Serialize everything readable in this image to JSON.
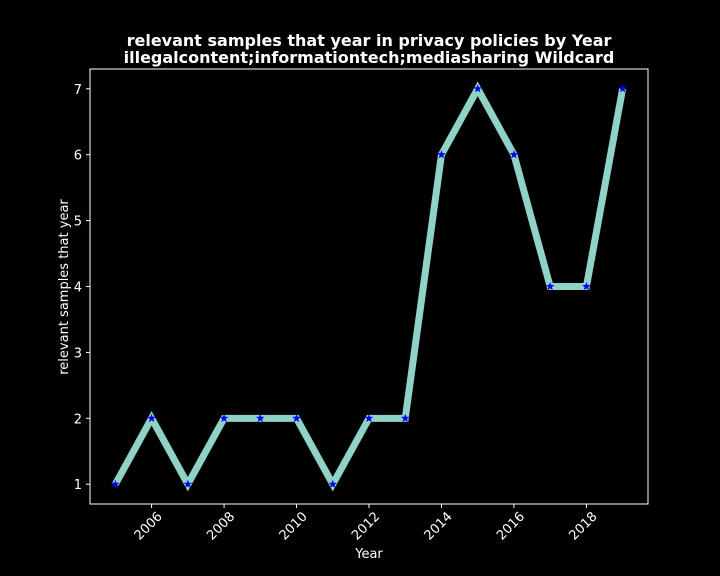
{
  "chart_data": {
    "type": "line",
    "title_line1": "relevant samples that year in privacy policies by Year",
    "title_line2": "illegalcontent;informationtech;mediasharing Wildcard",
    "xlabel": "Year",
    "ylabel": "relevant samples that year",
    "x": [
      2005,
      2006,
      2007,
      2008,
      2009,
      2010,
      2011,
      2012,
      2013,
      2014,
      2015,
      2016,
      2017,
      2018,
      2019
    ],
    "values": [
      1,
      2,
      1,
      2,
      2,
      2,
      1,
      2,
      2,
      6,
      7,
      6,
      4,
      4,
      7
    ],
    "xlim": [
      2004.3,
      2019.7
    ],
    "ylim": [
      0.7,
      7.3
    ],
    "xticks": [
      2006,
      2008,
      2010,
      2012,
      2014,
      2016,
      2018
    ],
    "yticks": [
      1,
      2,
      3,
      4,
      5,
      6,
      7
    ],
    "grid": false,
    "line_color": "#8dd3c7",
    "marker_color": "#0000ff",
    "marker": "star",
    "background": "#000000",
    "axis_color": "#ffffff"
  }
}
